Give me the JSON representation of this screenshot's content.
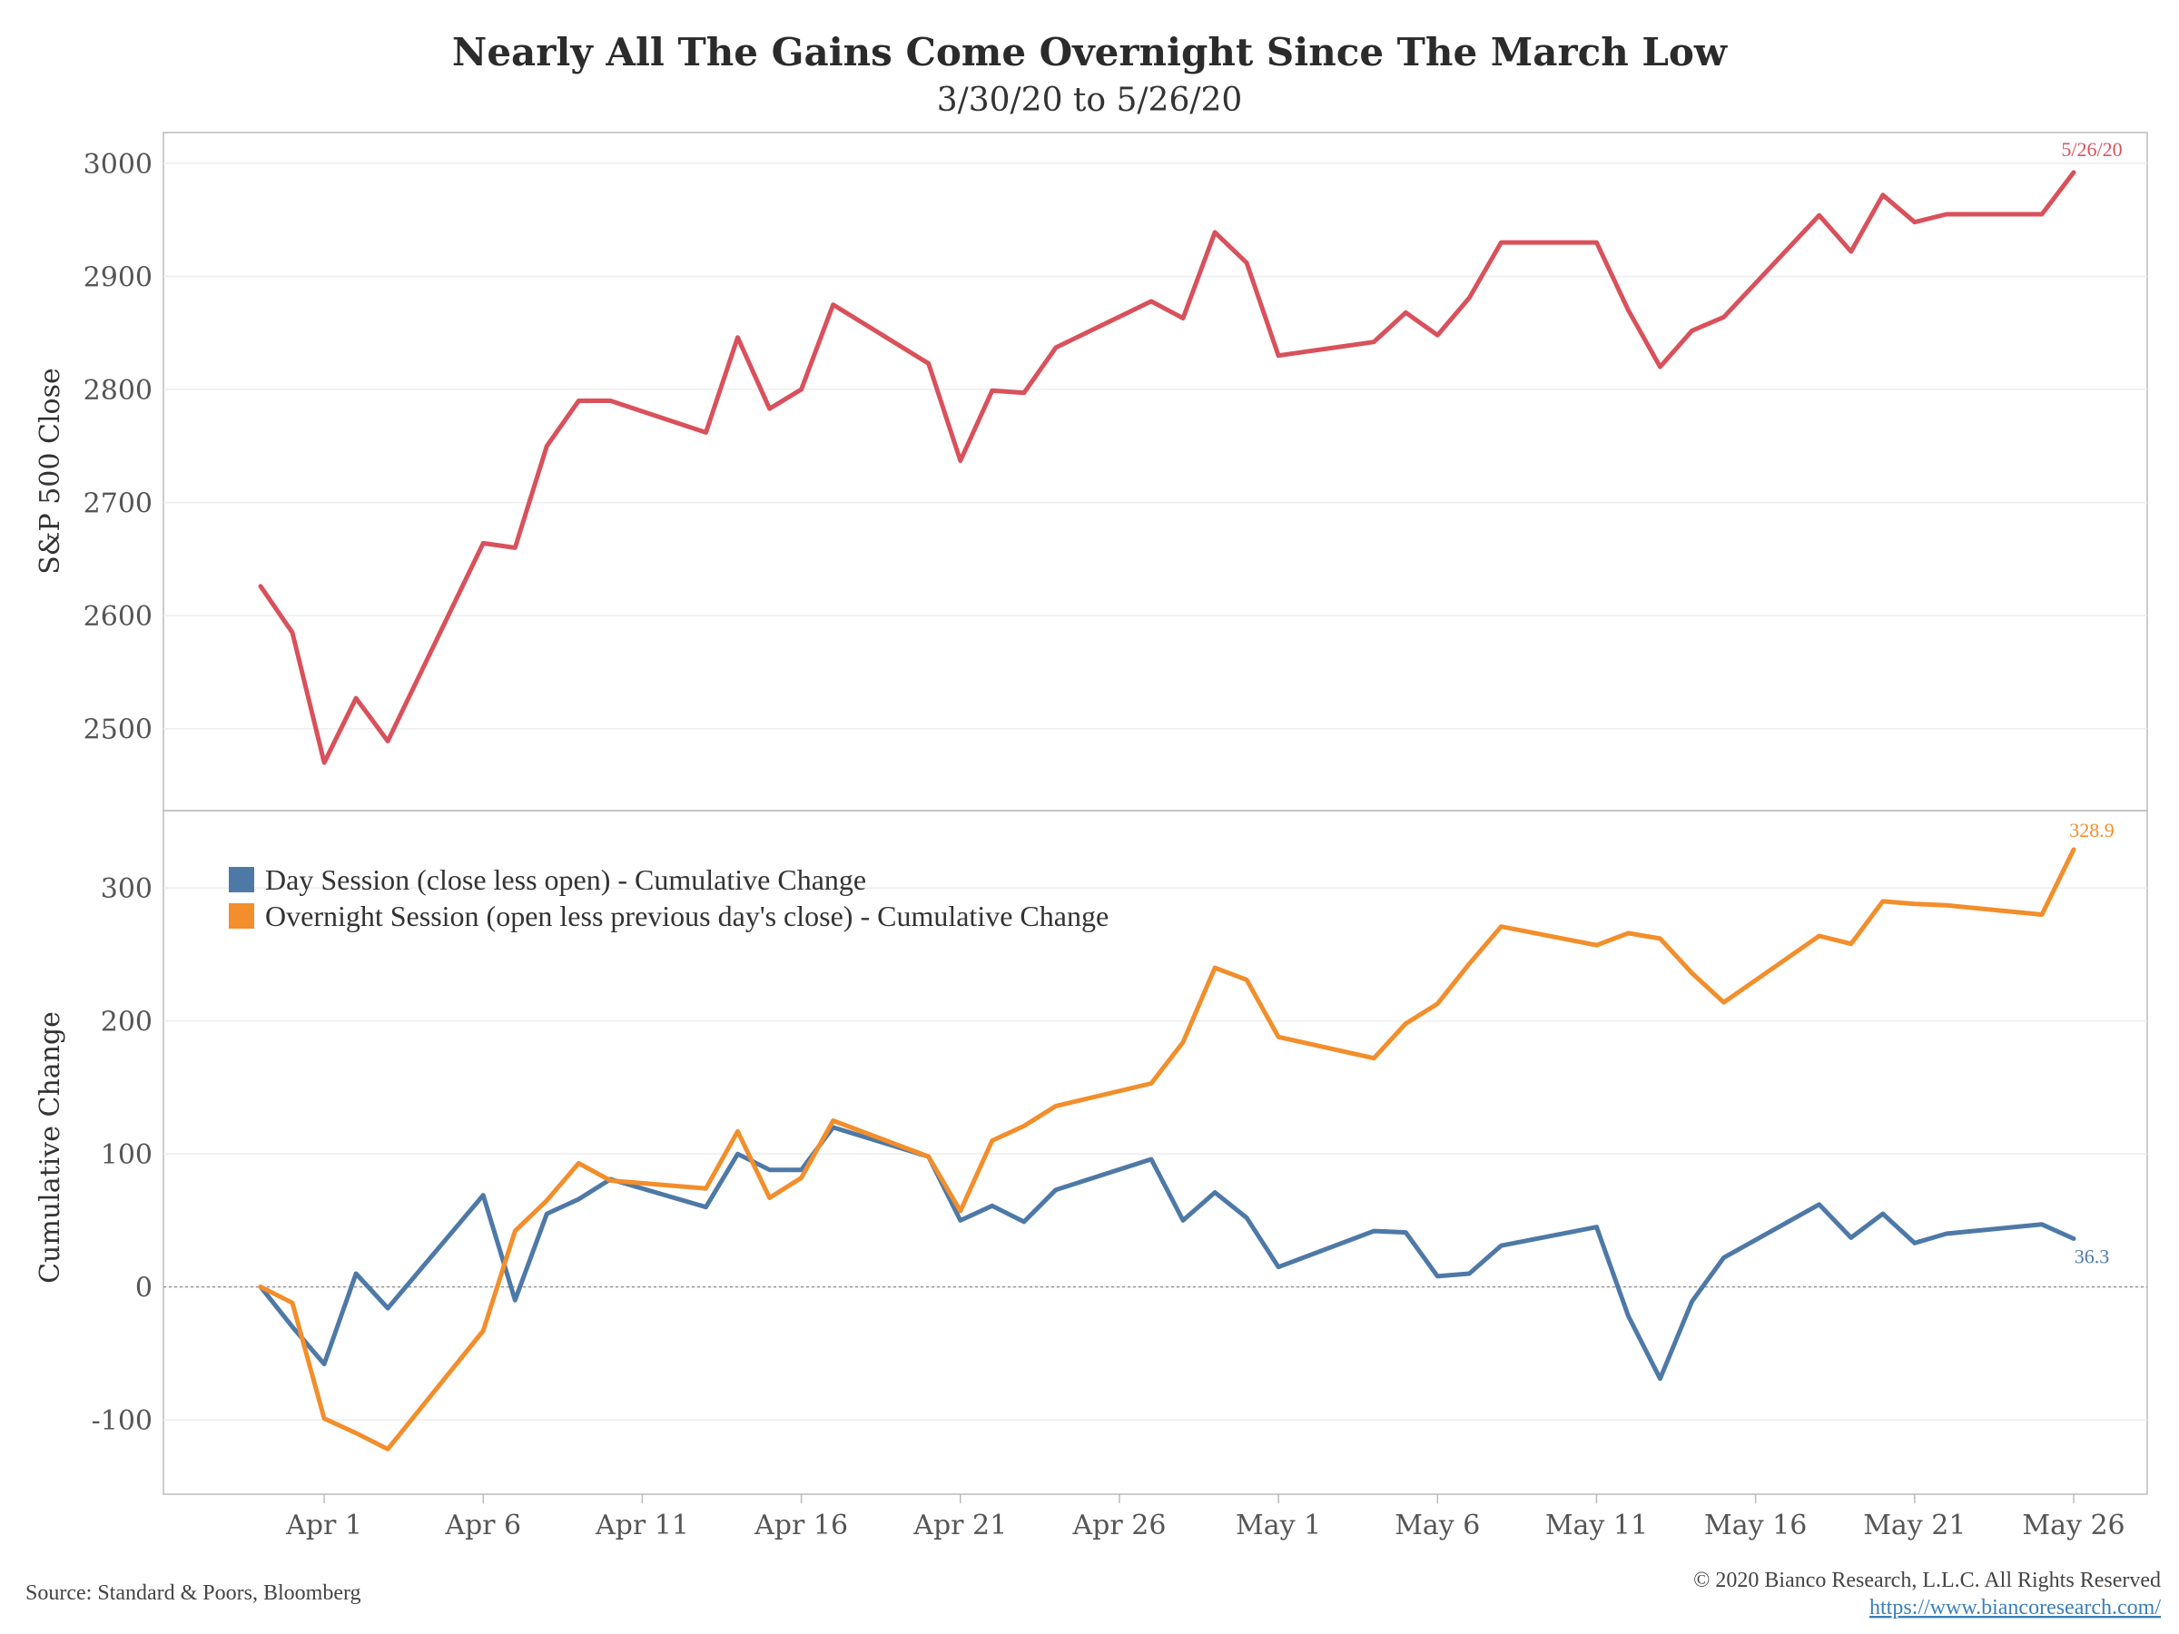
{
  "header": {
    "title": "Nearly All The Gains Come Overnight Since The March Low",
    "subtitle": "3/30/20 to 5/26/20"
  },
  "footer": {
    "source": "Source: Standard & Poors, Bloomberg",
    "copyright": "© 2020 Bianco Research, L.L.C. All Rights Reserved",
    "url": "https://www.biancoresearch.com/"
  },
  "colors": {
    "sp500": "#d9515b",
    "day_session": "#4e79a7",
    "overnight_session": "#f28e2b",
    "grid": "#eeeeee",
    "axis": "#bbbbbb"
  },
  "chart_data": [
    {
      "type": "line",
      "ylabel": "S&P 500 Close",
      "ylim": [
        2450,
        3020
      ],
      "yticks": [
        2500,
        2600,
        2700,
        2800,
        2900,
        3000
      ],
      "grid": true,
      "series": [
        {
          "end_label": "5/26/20",
          "points": [
            [
              "2020-03-30",
              2626
            ],
            [
              "2020-03-31",
              2585
            ],
            [
              "2020-04-01",
              2470
            ],
            [
              "2020-04-02",
              2527
            ],
            [
              "2020-04-03",
              2489
            ],
            [
              "2020-04-06",
              2664
            ],
            [
              "2020-04-07",
              2660
            ],
            [
              "2020-04-08",
              2750
            ],
            [
              "2020-04-09",
              2790
            ],
            [
              "2020-04-10",
              2790
            ],
            [
              "2020-04-13",
              2762
            ],
            [
              "2020-04-14",
              2846
            ],
            [
              "2020-04-15",
              2783
            ],
            [
              "2020-04-16",
              2800
            ],
            [
              "2020-04-17",
              2875
            ],
            [
              "2020-04-20",
              2823
            ],
            [
              "2020-04-21",
              2737
            ],
            [
              "2020-04-22",
              2799
            ],
            [
              "2020-04-23",
              2797
            ],
            [
              "2020-04-24",
              2837
            ],
            [
              "2020-04-27",
              2878
            ],
            [
              "2020-04-28",
              2863
            ],
            [
              "2020-04-29",
              2939
            ],
            [
              "2020-04-30",
              2912
            ],
            [
              "2020-05-01",
              2830
            ],
            [
              "2020-05-04",
              2842
            ],
            [
              "2020-05-05",
              2868
            ],
            [
              "2020-05-06",
              2848
            ],
            [
              "2020-05-07",
              2881
            ],
            [
              "2020-05-08",
              2930
            ],
            [
              "2020-05-11",
              2930
            ],
            [
              "2020-05-12",
              2870
            ],
            [
              "2020-05-13",
              2820
            ],
            [
              "2020-05-14",
              2852
            ],
            [
              "2020-05-15",
              2864
            ],
            [
              "2020-05-18",
              2954
            ],
            [
              "2020-05-19",
              2922
            ],
            [
              "2020-05-20",
              2972
            ],
            [
              "2020-05-21",
              2948
            ],
            [
              "2020-05-22",
              2955
            ],
            [
              "2020-05-25",
              2955
            ],
            [
              "2020-05-26",
              2992
            ]
          ]
        }
      ]
    },
    {
      "type": "line",
      "ylabel": "Cumulative Change",
      "ylim": [
        -145,
        350
      ],
      "yticks": [
        -100,
        0,
        100,
        200,
        300
      ],
      "grid": true,
      "zero_line": true,
      "legend_position": "top-left",
      "xticks": [
        "2020-04-01",
        "2020-04-06",
        "2020-04-11",
        "2020-04-16",
        "2020-04-21",
        "2020-04-26",
        "2020-05-01",
        "2020-05-06",
        "2020-05-11",
        "2020-05-16",
        "2020-05-21",
        "2020-05-26"
      ],
      "xtick_labels": [
        "Apr 1",
        "Apr 6",
        "Apr 11",
        "Apr 16",
        "Apr 21",
        "Apr 26",
        "May 1",
        "May 6",
        "May 11",
        "May 16",
        "May 21",
        "May 26"
      ],
      "series": [
        {
          "name": "Day Session (close less open) - Cumulative Change",
          "end_label": "36.3",
          "points": [
            [
              "2020-03-30",
              0
            ],
            [
              "2020-03-31",
              -30
            ],
            [
              "2020-04-01",
              -58
            ],
            [
              "2020-04-02",
              10
            ],
            [
              "2020-04-03",
              -16
            ],
            [
              "2020-04-06",
              69
            ],
            [
              "2020-04-07",
              -10
            ],
            [
              "2020-04-08",
              55
            ],
            [
              "2020-04-09",
              66
            ],
            [
              "2020-04-10",
              81
            ],
            [
              "2020-04-13",
              60
            ],
            [
              "2020-04-14",
              100
            ],
            [
              "2020-04-15",
              88
            ],
            [
              "2020-04-16",
              88
            ],
            [
              "2020-04-17",
              120
            ],
            [
              "2020-04-20",
              98
            ],
            [
              "2020-04-21",
              50
            ],
            [
              "2020-04-22",
              61
            ],
            [
              "2020-04-23",
              49
            ],
            [
              "2020-04-24",
              73
            ],
            [
              "2020-04-27",
              96
            ],
            [
              "2020-04-28",
              50
            ],
            [
              "2020-04-29",
              71
            ],
            [
              "2020-04-30",
              52
            ],
            [
              "2020-05-01",
              15
            ],
            [
              "2020-05-04",
              42
            ],
            [
              "2020-05-05",
              41
            ],
            [
              "2020-05-06",
              8
            ],
            [
              "2020-05-07",
              10
            ],
            [
              "2020-05-08",
              31
            ],
            [
              "2020-05-11",
              45
            ],
            [
              "2020-05-12",
              -22
            ],
            [
              "2020-05-13",
              -69
            ],
            [
              "2020-05-14",
              -11
            ],
            [
              "2020-05-15",
              22
            ],
            [
              "2020-05-18",
              62
            ],
            [
              "2020-05-19",
              37
            ],
            [
              "2020-05-20",
              55
            ],
            [
              "2020-05-21",
              33
            ],
            [
              "2020-05-22",
              40
            ],
            [
              "2020-05-25",
              47
            ],
            [
              "2020-05-26",
              36.3
            ]
          ]
        },
        {
          "name": "Overnight Session (open less previous day's close) - Cumulative Change",
          "end_label": "328.9",
          "points": [
            [
              "2020-03-30",
              0
            ],
            [
              "2020-03-31",
              -12
            ],
            [
              "2020-04-01",
              -99
            ],
            [
              "2020-04-02",
              -110
            ],
            [
              "2020-04-03",
              -122
            ],
            [
              "2020-04-06",
              -33
            ],
            [
              "2020-04-07",
              42
            ],
            [
              "2020-04-08",
              65
            ],
            [
              "2020-04-09",
              93
            ],
            [
              "2020-04-10",
              80
            ],
            [
              "2020-04-13",
              74
            ],
            [
              "2020-04-14",
              117
            ],
            [
              "2020-04-15",
              67
            ],
            [
              "2020-04-16",
              82
            ],
            [
              "2020-04-17",
              125
            ],
            [
              "2020-04-20",
              98
            ],
            [
              "2020-04-21",
              57
            ],
            [
              "2020-04-22",
              110
            ],
            [
              "2020-04-23",
              121
            ],
            [
              "2020-04-24",
              136
            ],
            [
              "2020-04-27",
              153
            ],
            [
              "2020-04-28",
              184
            ],
            [
              "2020-04-29",
              240
            ],
            [
              "2020-04-30",
              231
            ],
            [
              "2020-05-01",
              188
            ],
            [
              "2020-05-04",
              172
            ],
            [
              "2020-05-05",
              198
            ],
            [
              "2020-05-06",
              213
            ],
            [
              "2020-05-07",
              243
            ],
            [
              "2020-05-08",
              271
            ],
            [
              "2020-05-11",
              257
            ],
            [
              "2020-05-12",
              266
            ],
            [
              "2020-05-13",
              262
            ],
            [
              "2020-05-14",
              236
            ],
            [
              "2020-05-15",
              214
            ],
            [
              "2020-05-18",
              264
            ],
            [
              "2020-05-19",
              258
            ],
            [
              "2020-05-20",
              290
            ],
            [
              "2020-05-21",
              288
            ],
            [
              "2020-05-22",
              287
            ],
            [
              "2020-05-25",
              280
            ],
            [
              "2020-05-26",
              328.9
            ]
          ]
        }
      ]
    }
  ]
}
